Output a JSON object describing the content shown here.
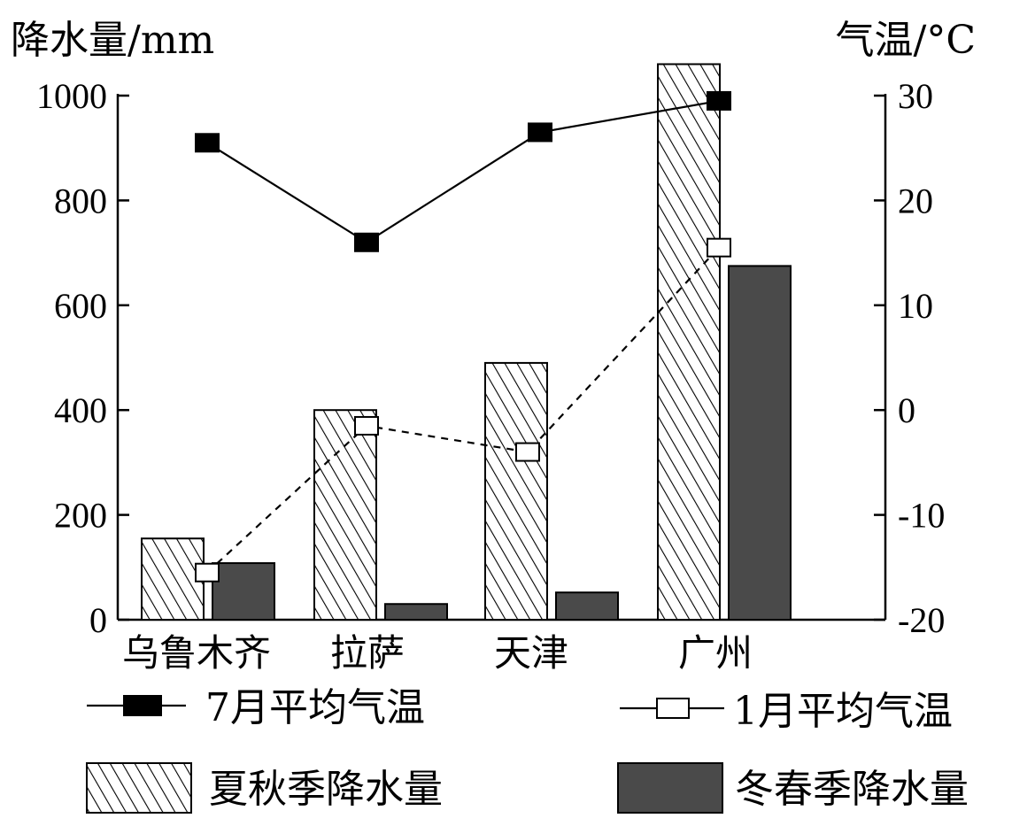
{
  "chart_data": {
    "type": "bar",
    "categories": [
      "乌鲁木齐",
      "拉萨",
      "天津",
      "广州"
    ],
    "y_left": {
      "label": "降水量/mm",
      "range": [
        0,
        1000
      ],
      "ticks": [
        0,
        200,
        400,
        600,
        800,
        1000
      ]
    },
    "y_right": {
      "label": "气温/°C",
      "range": [
        -20,
        30
      ],
      "ticks": [
        -20,
        -10,
        0,
        10,
        20,
        30
      ]
    },
    "bar_series": [
      {
        "name": "夏秋季降水量",
        "values": [
          155,
          400,
          490,
          1060
        ],
        "pattern": "hatch"
      },
      {
        "name": "冬春季降水量",
        "values": [
          108,
          30,
          52,
          675
        ],
        "color": "#4a4a4a"
      }
    ],
    "line_series": [
      {
        "name": "7月平均气温",
        "values": [
          25.5,
          16,
          26.5,
          29.5
        ],
        "marker": "filled-square",
        "line": "solid"
      },
      {
        "name": "1月平均气温",
        "values": [
          -15.5,
          -1.5,
          -4,
          15.5
        ],
        "marker": "open-square",
        "line": "dashed"
      }
    ],
    "legend": {
      "placement": "bottom",
      "items": [
        {
          "name": "7月平均气温",
          "label": "7月平均气温"
        },
        {
          "name": "1月平均气温",
          "label": "1月平均气温"
        },
        {
          "name": "夏秋季降水量",
          "label": "夏秋季降水量"
        },
        {
          "name": "冬春季降水量",
          "label": "冬春季降水量"
        }
      ]
    }
  }
}
